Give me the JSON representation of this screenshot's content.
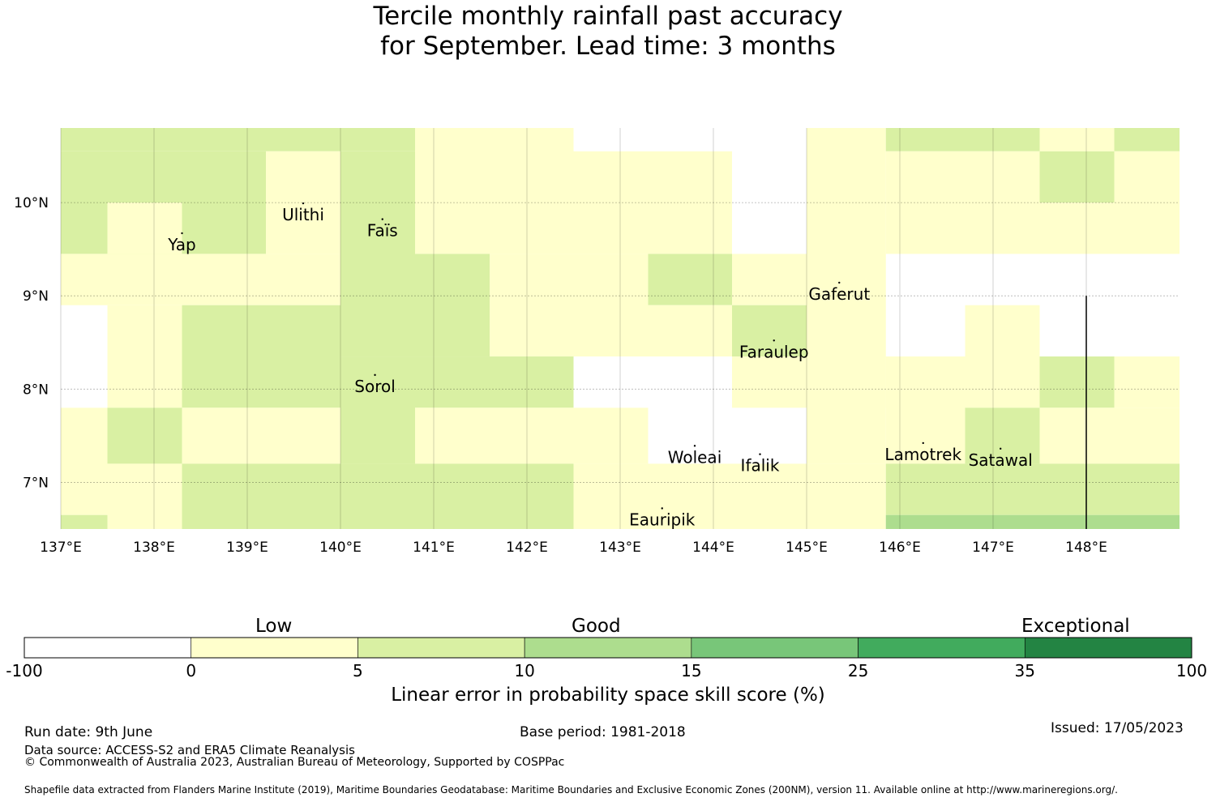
{
  "title": {
    "line1": "Tercile monthly rainfall past accuracy",
    "line2": "for September. Lead time: 3 months"
  },
  "map": {
    "lon_labels": [
      "137°E",
      "138°E",
      "139°E",
      "140°E",
      "141°E",
      "142°E",
      "143°E",
      "144°E",
      "145°E",
      "146°E",
      "147°E",
      "148°E"
    ],
    "lat_labels": [
      "10°N",
      "9°N",
      "8°N",
      "7°N"
    ],
    "places": [
      {
        "name": "Yap",
        "lon": 138.3,
        "lat": 9.55
      },
      {
        "name": "Ulithi",
        "lon": 139.6,
        "lat": 9.87
      },
      {
        "name": "Faïs",
        "lon": 140.45,
        "lat": 9.7
      },
      {
        "name": "Gaferut",
        "lon": 145.35,
        "lat": 9.02
      },
      {
        "name": "Faraulep",
        "lon": 144.65,
        "lat": 8.4
      },
      {
        "name": "Sorol",
        "lon": 140.37,
        "lat": 8.03
      },
      {
        "name": "Woleai",
        "lon": 143.8,
        "lat": 7.27
      },
      {
        "name": "Ifalik",
        "lon": 144.5,
        "lat": 7.18
      },
      {
        "name": "Lamotrek",
        "lon": 146.25,
        "lat": 7.3
      },
      {
        "name": "Satawal",
        "lon": 147.08,
        "lat": 7.24
      },
      {
        "name": "Eauripik",
        "lon": 143.45,
        "lat": 6.6
      }
    ],
    "grid_cells": [
      {
        "lon0": 137.0,
        "lon1": 140.8,
        "lat0": 10.55,
        "lat1": 10.8,
        "score": 7
      },
      {
        "lon0": 137.0,
        "lon1": 139.2,
        "lat0": 9.45,
        "lat1": 10.55,
        "score": 7
      },
      {
        "lon0": 139.2,
        "lon1": 140.0,
        "lat0": 9.45,
        "lat1": 10.55,
        "score": 2
      },
      {
        "lon0": 140.0,
        "lon1": 140.8,
        "lat0": 8.9,
        "lat1": 10.55,
        "score": 7
      },
      {
        "lon0": 137.5,
        "lon1": 138.3,
        "lat0": 9.45,
        "lat1": 10.0,
        "score": 2
      },
      {
        "lon0": 140.8,
        "lon1": 142.5,
        "lat0": 9.45,
        "lat1": 10.8,
        "score": 2
      },
      {
        "lon0": 142.5,
        "lon1": 144.2,
        "lat0": 9.45,
        "lat1": 10.55,
        "score": 2
      },
      {
        "lon0": 137.0,
        "lon1": 140.0,
        "lat0": 8.9,
        "lat1": 9.45,
        "score": 2
      },
      {
        "lon0": 140.0,
        "lon1": 141.6,
        "lat0": 8.35,
        "lat1": 9.45,
        "score": 7
      },
      {
        "lon0": 141.6,
        "lon1": 143.3,
        "lat0": 8.35,
        "lat1": 9.45,
        "score": 2
      },
      {
        "lon0": 143.3,
        "lon1": 144.2,
        "lat0": 8.9,
        "lat1": 9.45,
        "score": 7
      },
      {
        "lon0": 144.2,
        "lon1": 145.0,
        "lat0": 8.9,
        "lat1": 9.45,
        "score": 2
      },
      {
        "lon0": 143.3,
        "lon1": 144.2,
        "lat0": 8.35,
        "lat1": 8.9,
        "score": 2
      },
      {
        "lon0": 144.2,
        "lon1": 145.0,
        "lat0": 8.35,
        "lat1": 8.9,
        "score": 7
      },
      {
        "lon0": 145.0,
        "lon1": 145.85,
        "lat0": 8.35,
        "lat1": 10.8,
        "score": 2
      },
      {
        "lon0": 145.85,
        "lon1": 147.5,
        "lat0": 10.55,
        "lat1": 10.8,
        "score": 7
      },
      {
        "lon0": 147.5,
        "lon1": 148.3,
        "lat0": 10.55,
        "lat1": 10.8,
        "score": 2
      },
      {
        "lon0": 148.3,
        "lon1": 149.0,
        "lat0": 10.55,
        "lat1": 10.8,
        "score": 7
      },
      {
        "lon0": 145.85,
        "lon1": 147.5,
        "lat0": 9.45,
        "lat1": 10.55,
        "score": 2
      },
      {
        "lon0": 147.5,
        "lon1": 148.3,
        "lat0": 10.0,
        "lat1": 10.55,
        "score": 7
      },
      {
        "lon0": 148.3,
        "lon1": 149.0,
        "lat0": 9.45,
        "lat1": 10.55,
        "score": 2
      },
      {
        "lon0": 147.5,
        "lon1": 148.3,
        "lat0": 9.45,
        "lat1": 10.0,
        "score": 2
      },
      {
        "lon0": 137.5,
        "lon1": 138.3,
        "lat0": 7.8,
        "lat1": 8.9,
        "score": 2
      },
      {
        "lon0": 138.3,
        "lon1": 140.0,
        "lat0": 7.8,
        "lat1": 8.9,
        "score": 7
      },
      {
        "lon0": 140.0,
        "lon1": 140.8,
        "lat0": 7.2,
        "lat1": 8.35,
        "score": 7
      },
      {
        "lon0": 140.8,
        "lon1": 142.5,
        "lat0": 7.8,
        "lat1": 8.35,
        "score": 7
      },
      {
        "lon0": 145.0,
        "lon1": 145.85,
        "lat0": 7.2,
        "lat1": 8.35,
        "score": 2
      },
      {
        "lon0": 144.2,
        "lon1": 145.85,
        "lat0": 7.8,
        "lat1": 8.35,
        "score": 2
      },
      {
        "lon0": 145.85,
        "lon1": 146.7,
        "lat0": 7.2,
        "lat1": 8.35,
        "score": 2
      },
      {
        "lon0": 146.7,
        "lon1": 147.5,
        "lat0": 7.8,
        "lat1": 8.9,
        "score": 2
      },
      {
        "lon0": 147.5,
        "lon1": 148.3,
        "lat0": 7.8,
        "lat1": 8.35,
        "score": 7
      },
      {
        "lon0": 148.3,
        "lon1": 149.0,
        "lat0": 7.8,
        "lat1": 8.35,
        "score": 2
      },
      {
        "lon0": 146.7,
        "lon1": 147.5,
        "lat0": 7.2,
        "lat1": 7.8,
        "score": 7
      },
      {
        "lon0": 147.5,
        "lon1": 149.0,
        "lat0": 7.2,
        "lat1": 7.8,
        "score": 2
      },
      {
        "lon0": 137.0,
        "lon1": 137.5,
        "lat0": 6.65,
        "lat1": 7.8,
        "score": 2
      },
      {
        "lon0": 137.5,
        "lon1": 138.3,
        "lat0": 7.2,
        "lat1": 7.8,
        "score": 7
      },
      {
        "lon0": 137.5,
        "lon1": 138.3,
        "lat0": 6.5,
        "lat1": 7.2,
        "score": 2
      },
      {
        "lon0": 137.0,
        "lon1": 137.5,
        "lat0": 6.5,
        "lat1": 6.65,
        "score": 7
      },
      {
        "lon0": 138.3,
        "lon1": 140.0,
        "lat0": 7.2,
        "lat1": 7.8,
        "score": 2
      },
      {
        "lon0": 140.8,
        "lon1": 142.5,
        "lat0": 7.2,
        "lat1": 7.8,
        "score": 2
      },
      {
        "lon0": 142.5,
        "lon1": 143.3,
        "lat0": 7.2,
        "lat1": 7.8,
        "score": 2
      },
      {
        "lon0": 138.3,
        "lon1": 142.5,
        "lat0": 6.5,
        "lat1": 7.2,
        "score": 7
      },
      {
        "lon0": 142.5,
        "lon1": 145.85,
        "lat0": 6.5,
        "lat1": 7.2,
        "score": 2
      },
      {
        "lon0": 145.85,
        "lon1": 149.0,
        "lat0": 6.65,
        "lat1": 7.2,
        "score": 7
      },
      {
        "lon0": 145.85,
        "lon1": 149.0,
        "lat0": 6.5,
        "lat1": 6.65,
        "score": 12
      }
    ],
    "boundary_line": {
      "lon": 148.0,
      "lat_top": 9.0,
      "lat_bottom": 6.5
    }
  },
  "colorbar": {
    "categories": [
      "Low",
      "Good",
      "Exceptional"
    ],
    "tick_labels": [
      "-100",
      "0",
      "5",
      "10",
      "15",
      "25",
      "35",
      "100"
    ],
    "colors": [
      "#ffffff",
      "#ffffcc",
      "#d9f0a3",
      "#addd8e",
      "#78c679",
      "#41ab5d",
      "#238443"
    ],
    "xlabel": "Linear error in probability space skill score (%)"
  },
  "footer": {
    "run_date": "Run date: 9th June",
    "base_period": "Base period: 1981-2018",
    "issued": "Issued: 17/05/2023",
    "data_source": "Data source: ACCESS-S2 and ERA5 Climate Reanalysis",
    "copyright": "© Commonwealth of Australia 2023, Australian Bureau of Meteorology, Supported by COSPPac",
    "shapefile": "Shapefile data extracted from Flanders Marine Institute (2019), Maritime Boundaries Geodatabase: Maritime Boundaries and Exclusive Economic Zones (200NM), version 11. Available online at http://www.marineregions.org/."
  }
}
